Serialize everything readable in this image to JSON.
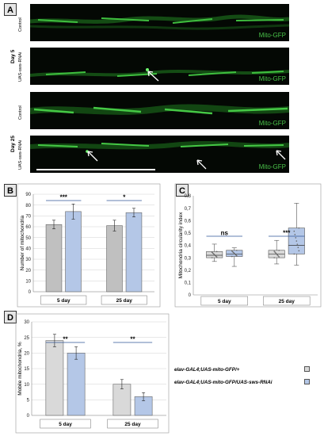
{
  "panels": {
    "A": {
      "letter": "A",
      "images": [
        {
          "group": "Day 5",
          "condition": "Control",
          "label": "Mito-GFP"
        },
        {
          "group": "Day 5",
          "condition": "UAS-sws-RNAi",
          "label": "Mito-GFP"
        },
        {
          "group": "Day 25",
          "condition": "Control",
          "label": "Mito-GFP"
        },
        {
          "group": "Day 25",
          "condition": "UAS-sws-RNAi",
          "label": "Mito-GFP"
        }
      ],
      "group_labels": [
        "Day 5",
        "Day 25"
      ]
    },
    "B": {
      "letter": "B"
    },
    "C": {
      "letter": "C"
    },
    "D": {
      "letter": "D"
    }
  },
  "chart_data": [
    {
      "panel": "B",
      "type": "bar",
      "categories": [
        "5 day",
        "25 day"
      ],
      "series": [
        {
          "values": [
            62,
            61
          ],
          "errors": [
            4,
            5
          ],
          "color": "#c0c0c0"
        },
        {
          "values": [
            74,
            73
          ],
          "errors": [
            7,
            4
          ],
          "color": "#b4c7e7"
        }
      ],
      "ylabel": "Number of mitochondria",
      "ylim": [
        0,
        90
      ],
      "yticks": [
        "0",
        "10",
        "20",
        "30",
        "40",
        "50",
        "60",
        "70",
        "80",
        "90"
      ],
      "significance": [
        "***",
        "*"
      ],
      "grid": true
    },
    {
      "panel": "C",
      "type": "box",
      "categories": [
        "5 day",
        "25 day"
      ],
      "series": [
        {
          "color": "#d9d9d9",
          "boxes": [
            {
              "min": 0.27,
              "q1": 0.3,
              "median": 0.32,
              "q3": 0.35,
              "max": 0.41
            },
            {
              "min": 0.25,
              "q1": 0.3,
              "median": 0.33,
              "q3": 0.36,
              "max": 0.44
            }
          ]
        },
        {
          "color": "#b4c7e7",
          "boxes": [
            {
              "min": 0.23,
              "q1": 0.31,
              "median": 0.33,
              "q3": 0.36,
              "max": 0.38
            },
            {
              "min": 0.24,
              "q1": 0.33,
              "median": 0.4,
              "q3": 0.54,
              "max": 0.74
            }
          ]
        }
      ],
      "ylabel": "Mitochondria circularity index",
      "ylim": [
        0,
        0.8
      ],
      "yticks": [
        "0",
        "0,1",
        "0,2",
        "0,3",
        "0,4",
        "0,5",
        "0,6",
        "0,7",
        "0,8"
      ],
      "significance": [
        "ns",
        "***"
      ],
      "grid": false
    },
    {
      "panel": "D",
      "type": "bar",
      "categories": [
        "5 day",
        "25 day"
      ],
      "series": [
        {
          "name": "elav-GAL4;UAS-mito-GFP/+",
          "values": [
            24,
            10
          ],
          "errors": [
            2,
            1.5
          ],
          "color": "#d9d9d9"
        },
        {
          "name": "elav-GAL4;UAS-mito-GFP/UAS-sws-RNAi",
          "values": [
            20,
            6
          ],
          "errors": [
            2,
            1.3
          ],
          "color": "#b4c7e7"
        }
      ],
      "ylabel": "Mobile mitochondria, %",
      "ylim": [
        0,
        30
      ],
      "yticks": [
        "0",
        "5",
        "10",
        "15",
        "20",
        "25",
        "30"
      ],
      "significance": [
        "**",
        "**"
      ],
      "grid": true,
      "legend_position": "right"
    }
  ]
}
